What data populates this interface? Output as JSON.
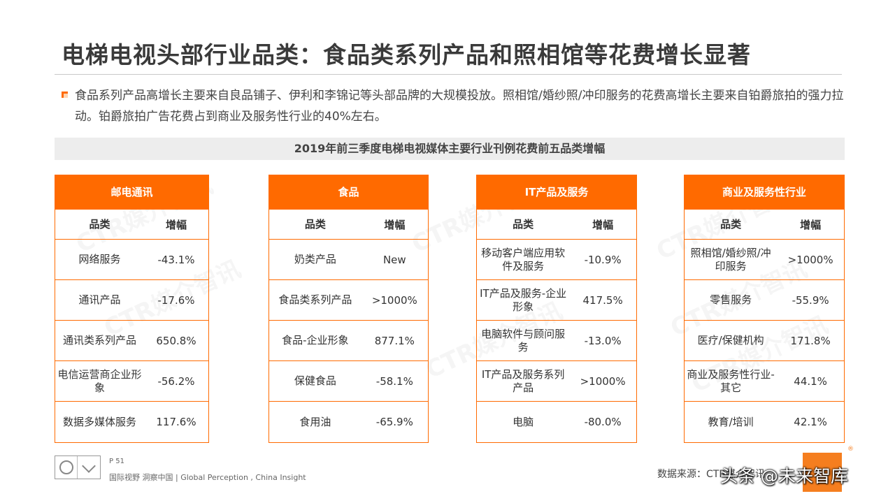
{
  "title": "电梯电视头部行业品类：食品类系列产品和照相馆等花费增长显著",
  "intro": "食品系列产品高增长主要来自良品铺子、伊利和李锦记等头部品牌的大规模投放。照相馆/婚纱照/冲印服务的花费高增长主要来自铂爵旅拍的强力拉动。铂爵旅拍广告花费占到商业及服务性行业的40%左右。",
  "subtitle": "2019年前三季度电梯电视媒体主要行业刊例花费前五品类增幅",
  "col_category": "品类",
  "col_growth": "增幅",
  "tables": [
    {
      "name": "邮电通讯",
      "rows": [
        {
          "category": "网络服务",
          "growth": "-43.1%"
        },
        {
          "category": "通讯产品",
          "growth": "-17.6%"
        },
        {
          "category": "通讯类系列产品",
          "growth": "650.8%"
        },
        {
          "category": "电信运营商企业形象",
          "growth": "-56.2%"
        },
        {
          "category": "数据多媒体服务",
          "growth": "117.6%"
        }
      ]
    },
    {
      "name": "食品",
      "rows": [
        {
          "category": "奶类产品",
          "growth": "New"
        },
        {
          "category": "食品类系列产品",
          "growth": ">1000%"
        },
        {
          "category": "食品-企业形象",
          "growth": "877.1%"
        },
        {
          "category": "保健食品",
          "growth": "-58.1%"
        },
        {
          "category": "食用油",
          "growth": "-65.9%"
        }
      ]
    },
    {
      "name": "IT产品及服务",
      "rows": [
        {
          "category": "移动客户端应用软件及服务",
          "growth": "-10.9%"
        },
        {
          "category": "IT产品及服务-企业形象",
          "growth": "417.5%"
        },
        {
          "category": "电脑软件与顾问服务",
          "growth": "-13.0%"
        },
        {
          "category": "IT产品及服务系列产品",
          "growth": ">1000%"
        },
        {
          "category": "电脑",
          "growth": "-80.0%"
        }
      ]
    },
    {
      "name": "商业及服务性行业",
      "rows": [
        {
          "category": "照相馆/婚纱照/冲印服务",
          "growth": ">1000%"
        },
        {
          "category": "零售服务",
          "growth": "-55.9%"
        },
        {
          "category": "医疗/保健机构",
          "growth": "171.8%"
        },
        {
          "category": "商业及服务性行业-其它",
          "growth": "44.1%"
        },
        {
          "category": "教育/培训",
          "growth": "42.1%"
        }
      ]
    }
  ],
  "watermark": "CTR媒介智讯",
  "footer": {
    "page": "P 51",
    "slogan": "国际视野  洞察中国 | Global Perception , China Insight",
    "source": "数据来源：CTR媒介智讯",
    "reg_mark": "®",
    "overlay": "头条 @未来智库"
  },
  "colors": {
    "accent": "#ff6a00",
    "subtitle_bg": "#ededed"
  }
}
